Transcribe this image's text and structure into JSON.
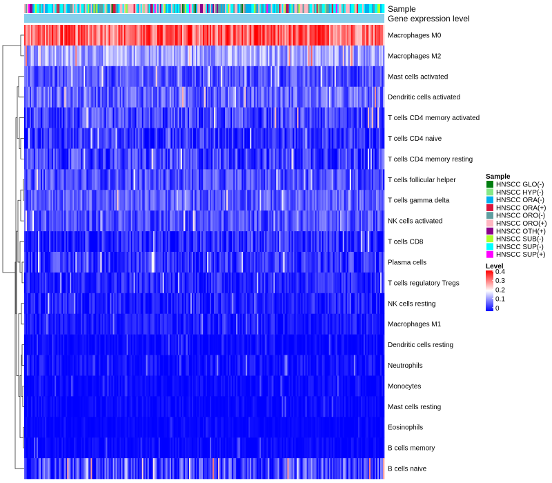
{
  "chart_data": {
    "type": "heatmap",
    "num_samples": 260,
    "annotation_labels": {
      "sample": "Sample",
      "gene_expression": "Gene expression level"
    },
    "gene_expression_color": "#87ceeb",
    "rows": [
      {
        "label": "Macrophages M0",
        "mean": 0.32,
        "spread": 0.08
      },
      {
        "label": "Macrophages M2",
        "mean": 0.13,
        "spread": 0.06
      },
      {
        "label": "Mast cells activated",
        "mean": 0.06,
        "spread": 0.05
      },
      {
        "label": "Dendritic cells activated",
        "mean": 0.08,
        "spread": 0.06
      },
      {
        "label": "T cells CD4 memory activated",
        "mean": 0.05,
        "spread": 0.06
      },
      {
        "label": "T cells CD4 naive",
        "mean": 0.04,
        "spread": 0.05
      },
      {
        "label": "T cells CD4 memory resting",
        "mean": 0.05,
        "spread": 0.06
      },
      {
        "label": "T cells follicular helper",
        "mean": 0.06,
        "spread": 0.05
      },
      {
        "label": "T cells gamma delta",
        "mean": 0.07,
        "spread": 0.05
      },
      {
        "label": "NK cells activated",
        "mean": 0.06,
        "spread": 0.05
      },
      {
        "label": "T cells CD8",
        "mean": 0.03,
        "spread": 0.05
      },
      {
        "label": "Plasma cells",
        "mean": 0.04,
        "spread": 0.05
      },
      {
        "label": "T cells regulatory  Tregs",
        "mean": 0.03,
        "spread": 0.04
      },
      {
        "label": "NK cells resting",
        "mean": 0.02,
        "spread": 0.04
      },
      {
        "label": "Macrophages M1",
        "mean": 0.02,
        "spread": 0.03
      },
      {
        "label": "Dendritic cells resting",
        "mean": 0.005,
        "spread": 0.02
      },
      {
        "label": "Neutrophils",
        "mean": 0.01,
        "spread": 0.03
      },
      {
        "label": "Monocytes",
        "mean": 0.005,
        "spread": 0.02
      },
      {
        "label": "Mast cells resting",
        "mean": 0.005,
        "spread": 0.02
      },
      {
        "label": "Eosinophils",
        "mean": 0.003,
        "spread": 0.01
      },
      {
        "label": "B cells memory",
        "mean": 0.004,
        "spread": 0.02
      },
      {
        "label": "B cells naive",
        "mean": 0.05,
        "spread": 0.08
      }
    ],
    "sample_groups": [
      {
        "label": "HNSCC GLO(-)",
        "color": "#007d10"
      },
      {
        "label": "HNSCC HYP(-)",
        "color": "#86e886"
      },
      {
        "label": "HNSCC ORA(-)",
        "color": "#00b0f0"
      },
      {
        "label": "HNSCC ORA(+)",
        "color": "#dc143c"
      },
      {
        "label": "HNSCC ORO(-)",
        "color": "#5f9ea0"
      },
      {
        "label": "HNSCC ORO(+)",
        "color": "#ffb6c1"
      },
      {
        "label": "HNSCC OTH(+)",
        "color": "#8b008b"
      },
      {
        "label": "HNSCC SUB(-)",
        "color": "#adff2f"
      },
      {
        "label": "HNSCC SUP(-)",
        "color": "#00ffff"
      },
      {
        "label": "HNSCC SUP(+)",
        "color": "#ff00ff"
      }
    ],
    "legend": {
      "sample_title": "Sample",
      "level_title": "Level",
      "level_ticks": [
        "0.4",
        "0.3",
        "0.2",
        "0.1",
        "0"
      ],
      "level_range": [
        0,
        0.4
      ],
      "gradient": [
        "#ff0000",
        "#ffffff",
        "#0000ff"
      ]
    },
    "dendrogram": "hierarchical clustering of rows"
  }
}
